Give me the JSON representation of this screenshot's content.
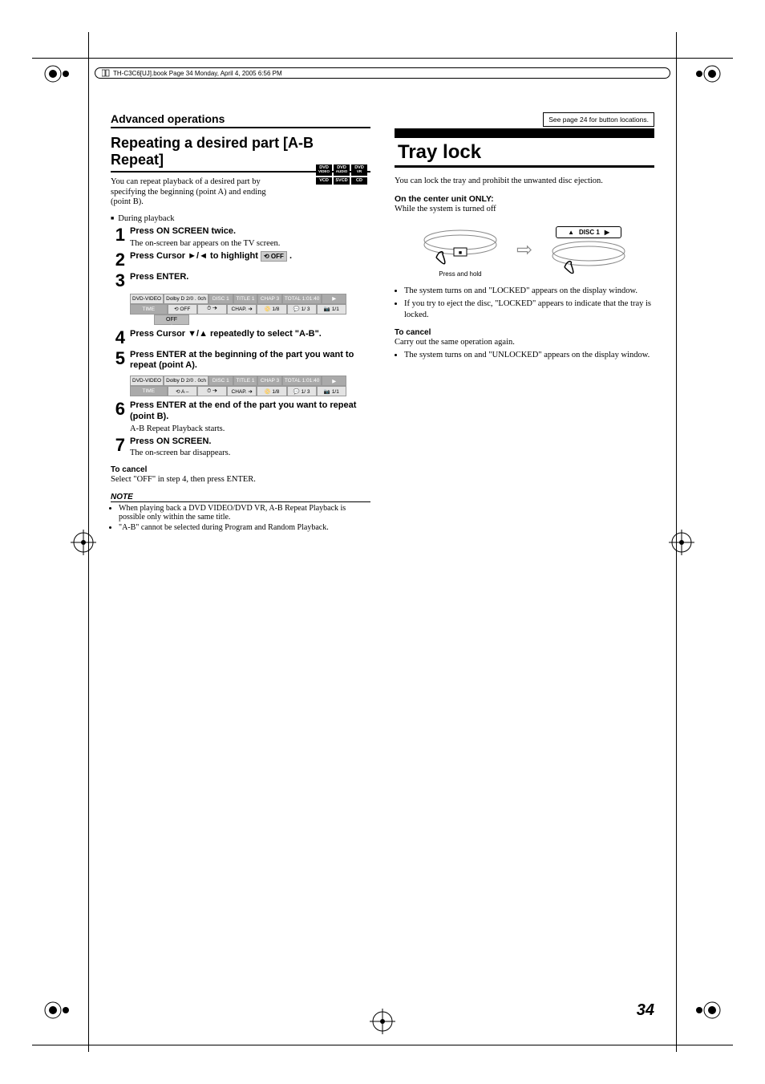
{
  "header_bar": "TH-C3C6[UJ].book  Page 34  Monday, April 4, 2005  6:56 PM",
  "section_head": "Advanced operations",
  "see_box": "See page 24 for button locations.",
  "left": {
    "h2": "Repeating a desired part [A-B Repeat]",
    "intro": "You can repeat playback of a desired part by specifying the beginning (point A) and ending (point B).",
    "badges": [
      "DVD VIDEO",
      "DVD AUDIO",
      "DVD VR",
      "VCD",
      "SVCD",
      "CD"
    ],
    "during": "During playback",
    "steps": [
      {
        "n": "1",
        "title": "Press ON SCREEN twice.",
        "text": "The on-screen bar appears on the TV screen."
      },
      {
        "n": "2",
        "title": "Press Cursor ►/◄ to highlight  ",
        "title_suffix_icon": "OFF",
        "title_end": "."
      },
      {
        "n": "3",
        "title": "Press ENTER."
      },
      {
        "n": "4",
        "title": "Press Cursor ▼/▲ repeatedly to select \"A-B\"."
      },
      {
        "n": "5",
        "title": "Press ENTER at the beginning of the part you want to repeat (point A)."
      },
      {
        "n": "6",
        "title": "Press ENTER at the end of the part you want to repeat (point B).",
        "text": "A-B Repeat Playback starts."
      },
      {
        "n": "7",
        "title": "Press ON SCREEN.",
        "text": "The on-screen bar disappears."
      }
    ],
    "osd1": {
      "row1": [
        "DVD-VIDEO",
        "Dolby D 2/0 . 0ch",
        "DISC 1",
        "TITLE  1",
        "CHAP  3",
        "TOTAL  1:01:40",
        "▶"
      ],
      "row2": [
        "TIME",
        "⟲ OFF",
        "⏱ ➔",
        "CHAP. ➔",
        "📀 1/8",
        "💬 1/ 3",
        "📷 1/1"
      ],
      "off": "OFF",
      "row1_styles": [
        "light",
        "light",
        "dark",
        "dark",
        "dark",
        "dark",
        "dark"
      ],
      "row2_styles": [
        "dark",
        "light",
        "light",
        "light",
        "light",
        "light",
        "light"
      ]
    },
    "osd2": {
      "row1": [
        "DVD-VIDEO",
        "Dolby D 2/0 . 0ch",
        "DISC 1",
        "TITLE  1",
        "CHAP  3",
        "TOTAL  1:01:40",
        "▶"
      ],
      "row2": [
        "TIME",
        "⟲ A –",
        "⏱ ➔",
        "CHAP. ➔",
        "📀 1/8",
        "💬 1/ 3",
        "📷 1/1"
      ],
      "row1_styles": [
        "light",
        "light",
        "dark",
        "dark",
        "dark",
        "dark",
        "dark"
      ],
      "row2_styles": [
        "dark",
        "light",
        "light",
        "light",
        "light",
        "light",
        "light"
      ]
    },
    "cancel_head": "To cancel",
    "cancel_text": "Select \"OFF\" in step 4, then press ENTER.",
    "note_label": "NOTE",
    "notes": [
      "When playing back a DVD VIDEO/DVD VR, A-B Repeat Playback is possible only within the same title.",
      "\"A-B\" cannot be selected during Program and Random Playback."
    ]
  },
  "right": {
    "title": "Tray lock",
    "intro": "You can lock the tray and prohibit the unwanted disc ejection.",
    "center_unit": "On the center unit ONLY:",
    "while_off": "While the system is turned off",
    "press_hold": "Press and hold",
    "disc_label": "DISC 1",
    "bullets1": [
      "The system turns on and \"LOCKED\" appears on the display window.",
      "If you try to eject the disc, \"LOCKED\" appears to indicate that the tray is locked."
    ],
    "cancel_head": "To cancel",
    "cancel_text": "Carry out the same operation again.",
    "bullets2": [
      "The system turns on and \"UNLOCKED\" appears on the display window."
    ]
  },
  "page_num": "34",
  "colors": {
    "badge_bg": "#000000",
    "osd_dark": "#aaaaaa",
    "osd_light": "#e3e3e3"
  }
}
